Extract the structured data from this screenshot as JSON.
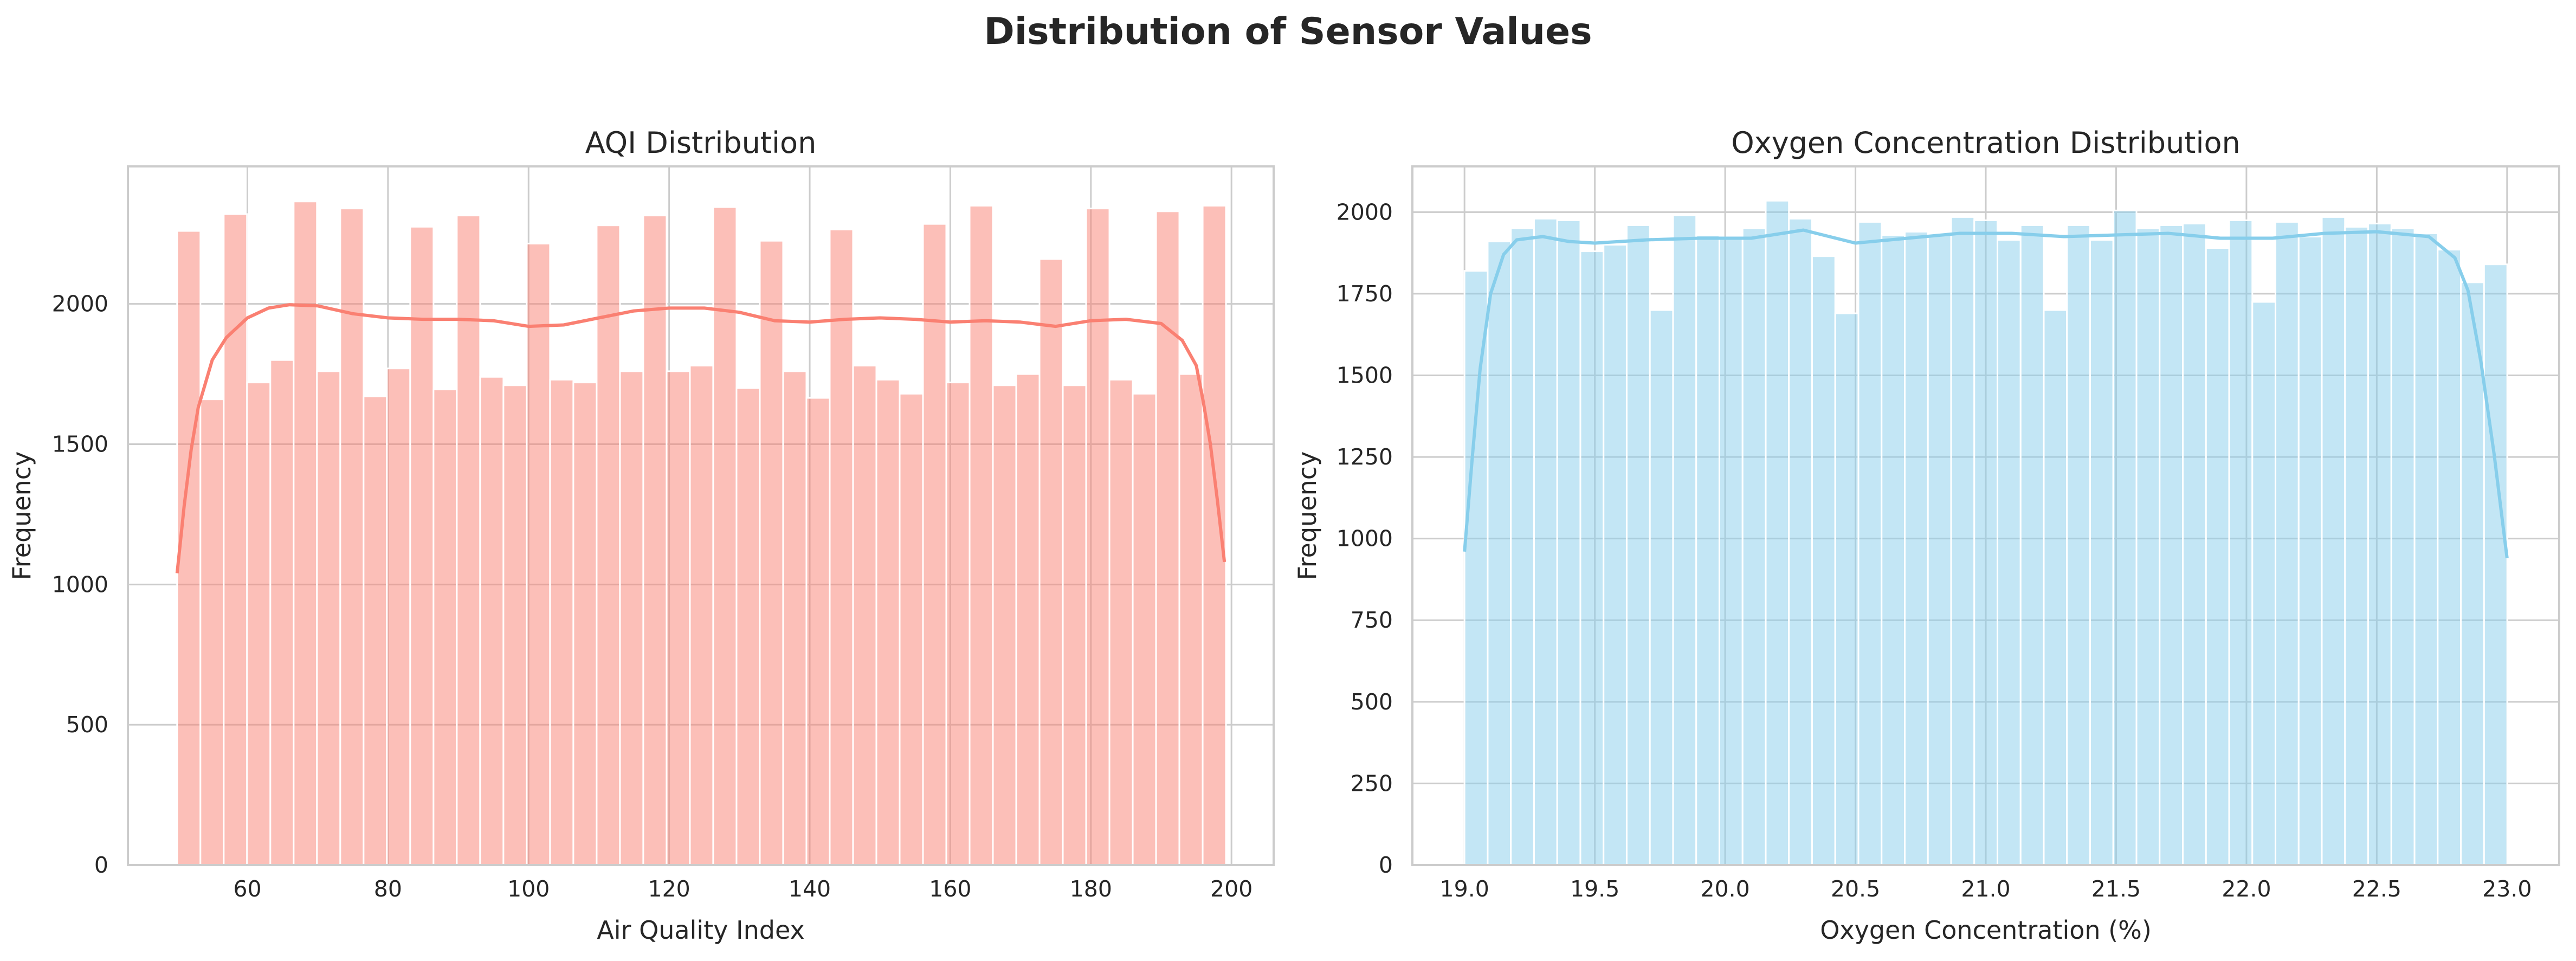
{
  "figure": {
    "title": "Distribution of Sensor Values"
  },
  "chart_data": [
    {
      "type": "bar",
      "subtype": "histogram-with-kde",
      "title": "AQI Distribution",
      "xlabel": "Air Quality Index",
      "ylabel": "Frequency",
      "xlim": [
        43,
        206
      ],
      "ylim": [
        0,
        2490
      ],
      "xticks": [
        60,
        80,
        100,
        120,
        140,
        160,
        180,
        200
      ],
      "yticks": [
        0,
        500,
        1000,
        1500,
        2000
      ],
      "grid": true,
      "legend": "none",
      "bar_color": "#fa8072",
      "bar_alpha": 0.5,
      "kde_color": "#fa8072",
      "bins": {
        "start": 50,
        "width": 3.316,
        "counts": [
          2260,
          1660,
          2320,
          1720,
          1800,
          2365,
          1760,
          2340,
          1670,
          1770,
          2275,
          1695,
          2315,
          1740,
          1710,
          2215,
          1730,
          1720,
          2280,
          1760,
          2315,
          1760,
          1780,
          2345,
          1700,
          2225,
          1760,
          1665,
          2265,
          1780,
          1730,
          1680,
          2285,
          1720,
          2350,
          1710,
          1750,
          2160,
          1710,
          2340,
          1730,
          1680,
          2330,
          1750,
          2350
        ]
      },
      "kde": {
        "x": [
          50,
          51,
          52,
          53,
          55,
          57,
          60,
          63,
          66,
          70,
          75,
          80,
          85,
          90,
          95,
          100,
          105,
          110,
          115,
          120,
          125,
          130,
          135,
          140,
          145,
          150,
          155,
          160,
          165,
          170,
          175,
          180,
          185,
          190,
          193,
          195,
          196,
          197,
          198,
          199
        ],
        "y": [
          1040,
          1280,
          1480,
          1630,
          1800,
          1880,
          1950,
          1985,
          1997,
          1993,
          1965,
          1950,
          1945,
          1945,
          1940,
          1920,
          1925,
          1950,
          1975,
          1985,
          1985,
          1970,
          1940,
          1935,
          1945,
          1950,
          1945,
          1935,
          1940,
          1935,
          1920,
          1940,
          1945,
          1930,
          1870,
          1780,
          1650,
          1500,
          1300,
          1080
        ]
      }
    },
    {
      "type": "bar",
      "subtype": "histogram-with-kde",
      "title": "Oxygen Concentration Distribution",
      "xlabel": "Oxygen Concentration (%)",
      "ylabel": "Frequency",
      "xlim": [
        18.8,
        23.2
      ],
      "ylim": [
        0,
        2140
      ],
      "xticks": [
        "19.0",
        "19.5",
        "20.0",
        "20.5",
        "21.0",
        "21.5",
        "22.0",
        "22.5",
        "23.0"
      ],
      "yticks": [
        0,
        250,
        500,
        750,
        1000,
        1250,
        1500,
        1750,
        2000
      ],
      "grid": true,
      "legend": "none",
      "bar_color": "#87ceeb",
      "bar_alpha": 0.5,
      "kde_color": "#87ceeb",
      "bins": {
        "start": 19.0,
        "width": 0.0889,
        "counts": [
          1820,
          1910,
          1950,
          1980,
          1975,
          1880,
          1900,
          1960,
          1700,
          1990,
          1930,
          1920,
          1950,
          2035,
          1980,
          1865,
          1690,
          1970,
          1930,
          1940,
          1930,
          1985,
          1975,
          1915,
          1960,
          1700,
          1960,
          1915,
          2005,
          1950,
          1960,
          1965,
          1890,
          1975,
          1725,
          1970,
          1925,
          1985,
          1955,
          1965,
          1950,
          1935,
          1885,
          1785,
          1840
        ]
      },
      "kde": {
        "x": [
          19.0,
          19.03,
          19.06,
          19.1,
          19.15,
          19.2,
          19.3,
          19.4,
          19.5,
          19.7,
          19.9,
          20.1,
          20.3,
          20.5,
          20.7,
          20.9,
          21.1,
          21.3,
          21.5,
          21.7,
          21.9,
          22.1,
          22.3,
          22.5,
          22.7,
          22.8,
          22.85,
          22.9,
          22.95,
          23.0
        ],
        "y": [
          960,
          1250,
          1520,
          1750,
          1870,
          1915,
          1925,
          1910,
          1905,
          1915,
          1920,
          1920,
          1945,
          1905,
          1920,
          1935,
          1935,
          1925,
          1930,
          1935,
          1920,
          1920,
          1935,
          1940,
          1925,
          1860,
          1760,
          1540,
          1260,
          940
        ]
      }
    }
  ]
}
